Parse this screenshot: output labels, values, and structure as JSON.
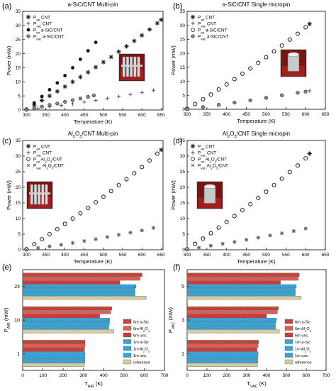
{
  "chart_data": [
    {
      "id": "a",
      "type": "scatter",
      "panel_label": "(a)",
      "title": "a-SiC/CNT Multi-pin",
      "xlabel": "Temperature (K)",
      "ylabel": "Power (mW)",
      "xlim": [
        290,
        655
      ],
      "ylim": [
        0,
        35
      ],
      "xticks": [
        300,
        350,
        400,
        450,
        500,
        550,
        600,
        650
      ],
      "yticks": [
        0,
        5,
        10,
        15,
        20,
        25,
        30,
        35
      ],
      "legend": "top-left",
      "series": [
        {
          "name": "P_air CNT",
          "marker": "asterisk",
          "x": [
            300,
            320,
            340,
            360,
            380,
            400,
            420,
            440,
            460,
            480,
            500,
            520,
            540,
            560,
            580,
            600,
            620,
            640,
            650
          ],
          "y": [
            0.2,
            1.8,
            3.4,
            5.0,
            6.6,
            8.3,
            10.0,
            11.7,
            13.4,
            15.2,
            17.0,
            18.8,
            20.7,
            22.6,
            24.5,
            26.5,
            28.6,
            30.8,
            32.0
          ]
        },
        {
          "name": "P_vac CNT",
          "marker": "plus",
          "x": [
            300,
            330,
            360,
            390,
            420,
            450,
            480,
            510,
            540,
            570,
            600,
            630
          ],
          "y": [
            0.1,
            0.6,
            1.1,
            1.6,
            2.2,
            2.8,
            3.4,
            4.1,
            4.8,
            5.5,
            6.2,
            7.0
          ]
        },
        {
          "name": "P_air a-SiC/CNT",
          "marker": "filled-circle",
          "x": [
            300,
            320,
            340,
            360,
            380,
            400,
            420,
            440,
            460,
            480
          ],
          "y": [
            0.3,
            2.5,
            4.8,
            7.2,
            9.6,
            12.2,
            15.0,
            18.0,
            21.0,
            24.0
          ]
        },
        {
          "name": "P_vac a-SiC/CNT",
          "marker": "half-circle",
          "x": [
            300,
            320,
            340,
            360,
            380,
            400,
            420,
            440,
            460,
            475
          ],
          "y": [
            0.2,
            0.7,
            1.2,
            1.8,
            2.3,
            2.9,
            3.5,
            4.1,
            4.7,
            5.2
          ]
        }
      ]
    },
    {
      "id": "b",
      "type": "scatter",
      "panel_label": "(b)",
      "title": "a-SiC/CNT Single micropin",
      "xlabel": "Temperature (K)",
      "ylabel": "Power (mW)",
      "xlim": [
        300,
        650
      ],
      "ylim": [
        0,
        35
      ],
      "xticks": [
        300,
        350,
        400,
        450,
        500,
        550,
        600,
        650
      ],
      "yticks": [
        0,
        5,
        10,
        15,
        20,
        25,
        30,
        35
      ],
      "legend": "top-left",
      "series": [
        {
          "name": "P_air CNT",
          "marker": "asterisk",
          "x": [
            300,
            320,
            340,
            360,
            380,
            400,
            420,
            440,
            460,
            480,
            500,
            520,
            540,
            560,
            580,
            600,
            610
          ],
          "y": [
            0.2,
            1.9,
            3.6,
            5.3,
            7.1,
            8.9,
            10.8,
            12.7,
            14.6,
            16.6,
            18.6,
            20.7,
            22.8,
            24.9,
            27.0,
            29.3,
            30.5
          ]
        },
        {
          "name": "P_vac CNT",
          "marker": "plus",
          "x": [
            300,
            340,
            380,
            420,
            460,
            500,
            540,
            580,
            610
          ],
          "y": [
            0.1,
            0.8,
            1.6,
            2.4,
            3.2,
            4.1,
            5.0,
            5.9,
            6.6
          ]
        },
        {
          "name": "P_air a-SiC/CNT",
          "marker": "open-circle",
          "x": [
            300,
            320,
            340,
            360,
            380,
            400,
            420,
            440,
            460,
            480,
            500,
            520,
            540,
            560,
            580,
            600
          ],
          "y": [
            0.2,
            1.9,
            3.6,
            5.3,
            7.1,
            8.9,
            10.8,
            12.7,
            14.6,
            16.6,
            18.6,
            20.7,
            22.8,
            24.9,
            27.0,
            29.3
          ]
        },
        {
          "name": "P_vac a-SiC/CNT",
          "marker": "half-circle",
          "x": [
            300,
            340,
            380,
            420,
            460,
            500,
            540,
            580,
            600
          ],
          "y": [
            0.1,
            0.8,
            1.6,
            2.4,
            3.2,
            4.1,
            5.0,
            5.9,
            6.3
          ]
        }
      ]
    },
    {
      "id": "c",
      "type": "scatter",
      "panel_label": "(c)",
      "title": "Al2O3/CNT Multi-pin",
      "xlabel": "Temperature (K)",
      "ylabel": "Power (mW)",
      "xlim": [
        290,
        655
      ],
      "ylim": [
        0,
        35
      ],
      "xticks": [
        300,
        350,
        400,
        450,
        500,
        550,
        600,
        650
      ],
      "yticks": [
        0,
        5,
        10,
        15,
        20,
        25,
        30,
        35
      ],
      "legend": "top-left",
      "series": [
        {
          "name": "P_air CNT",
          "marker": "asterisk",
          "x": [
            300,
            320,
            340,
            360,
            380,
            400,
            420,
            440,
            460,
            480,
            500,
            520,
            540,
            560,
            580,
            600,
            620,
            640,
            650
          ],
          "y": [
            0.2,
            1.8,
            3.4,
            5.0,
            6.6,
            8.3,
            10.0,
            11.7,
            13.4,
            15.2,
            17.0,
            18.8,
            20.7,
            22.6,
            24.5,
            26.5,
            28.6,
            30.8,
            32.0
          ]
        },
        {
          "name": "P_vac CNT",
          "marker": "plus",
          "x": [
            300,
            330,
            360,
            390,
            420,
            450,
            480,
            510,
            540,
            570,
            600,
            630
          ],
          "y": [
            0.1,
            0.6,
            1.1,
            1.6,
            2.2,
            2.8,
            3.4,
            4.1,
            4.8,
            5.5,
            6.2,
            7.0
          ]
        },
        {
          "name": "P_air Al2O3/CNT",
          "marker": "open-circle",
          "x": [
            300,
            320,
            340,
            360,
            380,
            400,
            420,
            440,
            460,
            480,
            500,
            520,
            540,
            560,
            580,
            600,
            620,
            640
          ],
          "y": [
            0.2,
            1.8,
            3.4,
            5.0,
            6.6,
            8.3,
            10.0,
            11.7,
            13.4,
            15.2,
            17.0,
            18.8,
            20.7,
            22.6,
            24.5,
            26.5,
            28.6,
            30.8
          ]
        },
        {
          "name": "P_vac Al2O3/CNT",
          "marker": "small-cross",
          "x": [
            300,
            330,
            360,
            390,
            420,
            450,
            480,
            510,
            540,
            570,
            600,
            630
          ],
          "y": [
            0.1,
            0.6,
            1.1,
            1.6,
            2.2,
            2.8,
            3.4,
            4.1,
            4.8,
            5.5,
            6.2,
            7.0
          ]
        }
      ]
    },
    {
      "id": "d",
      "type": "scatter",
      "panel_label": "(d)",
      "title": "Al2O3/CNT Single micropin",
      "xlabel": "Temperature (K)",
      "ylabel": "Power (mW)",
      "xlim": [
        300,
        650
      ],
      "ylim": [
        0,
        35
      ],
      "xticks": [
        300,
        350,
        400,
        450,
        500,
        550,
        600,
        650
      ],
      "yticks": [
        0,
        5,
        10,
        15,
        20,
        25,
        30,
        35
      ],
      "legend": "top-left",
      "series": [
        {
          "name": "P_air CNT",
          "marker": "asterisk",
          "x": [
            300,
            320,
            340,
            360,
            380,
            400,
            420,
            440,
            460,
            480,
            500,
            520,
            540,
            560,
            580,
            600,
            610
          ],
          "y": [
            0.2,
            1.9,
            3.6,
            5.3,
            7.1,
            8.9,
            10.8,
            12.7,
            14.6,
            16.6,
            18.6,
            20.7,
            22.8,
            24.9,
            27.0,
            29.3,
            30.8
          ]
        },
        {
          "name": "P_vac CNT",
          "marker": "plus",
          "x": [
            300,
            330,
            360,
            390,
            420,
            450,
            480,
            510,
            540,
            570,
            600
          ],
          "y": [
            0.1,
            0.7,
            1.3,
            1.9,
            2.5,
            3.2,
            3.9,
            4.6,
            5.3,
            6.0,
            6.8
          ]
        },
        {
          "name": "P_air Al2O3/CNT",
          "marker": "open-circle",
          "x": [
            300,
            320,
            340,
            360,
            380,
            400,
            420,
            440,
            460,
            480,
            500,
            520,
            540,
            560,
            580,
            600
          ],
          "y": [
            0.2,
            1.9,
            3.6,
            5.3,
            7.1,
            8.9,
            10.8,
            12.7,
            14.6,
            16.6,
            18.6,
            20.7,
            22.8,
            24.9,
            27.0,
            29.3
          ]
        },
        {
          "name": "P_vac Al2O3/CNT",
          "marker": "small-cross",
          "x": [
            300,
            330,
            360,
            390,
            420,
            450,
            480,
            510,
            540,
            570,
            600
          ],
          "y": [
            0.1,
            0.7,
            1.3,
            1.9,
            2.5,
            3.2,
            3.9,
            4.6,
            5.3,
            6.0,
            6.8
          ]
        }
      ]
    },
    {
      "id": "e",
      "type": "bar",
      "orientation": "horizontal",
      "panel_label": "(e)",
      "xlabel": "T_AIR (K)",
      "ylabel": "P_AIR (mW)",
      "xlim": [
        0,
        700
      ],
      "xticks": [
        0,
        100,
        200,
        300,
        400,
        500,
        600,
        700
      ],
      "categories": [
        "24",
        "10",
        "1"
      ],
      "legend": "bottom-right",
      "series": [
        {
          "name": "6m a-Sic",
          "values": [
            590,
            440,
            308
          ]
        },
        {
          "name": "6m Al2O3",
          "values": [
            580,
            435,
            308
          ]
        },
        {
          "name": "6m unc.",
          "values": [
            480,
            380,
            305
          ]
        },
        {
          "name": "1m a-Sic",
          "values": [
            560,
            430,
            308
          ]
        },
        {
          "name": "1m Al2O3",
          "values": [
            555,
            428,
            307
          ]
        },
        {
          "name": "1m unc.",
          "values": [
            555,
            425,
            307
          ]
        },
        {
          "name": "reference",
          "values": [
            610,
            450,
            305
          ]
        }
      ]
    },
    {
      "id": "f",
      "type": "bar",
      "orientation": "horizontal",
      "panel_label": "(f)",
      "xlabel": "T_VAC (K)",
      "ylabel": "P_VAC (mW)",
      "xlim": [
        0,
        700
      ],
      "xticks": [
        0,
        100,
        200,
        300,
        400,
        500,
        600,
        700
      ],
      "categories": [
        "5",
        "3",
        "1"
      ],
      "legend": "bottom-right",
      "series": [
        {
          "name": "6m a-Sic",
          "values": [
            565,
            460,
            360
          ]
        },
        {
          "name": "6m Al2O3",
          "values": [
            560,
            455,
            358
          ]
        },
        {
          "name": "6m unc.",
          "values": [
            470,
            400,
            352
          ]
        },
        {
          "name": "1m a-Sic",
          "values": [
            550,
            450,
            358
          ]
        },
        {
          "name": "1m Al2O3",
          "values": [
            545,
            445,
            357
          ]
        },
        {
          "name": "1m unc.",
          "values": [
            545,
            445,
            356
          ]
        },
        {
          "name": "reference",
          "values": [
            575,
            465,
            355
          ]
        }
      ]
    }
  ],
  "colors": {
    "series_a_sic": "#c0392b",
    "series_al2o3": "#d9534f",
    "series_unc": "#c9302c",
    "series_1m": "#2a9fd6",
    "series_reference": "#d2c79a",
    "sem_background": "#8b1a1a"
  }
}
